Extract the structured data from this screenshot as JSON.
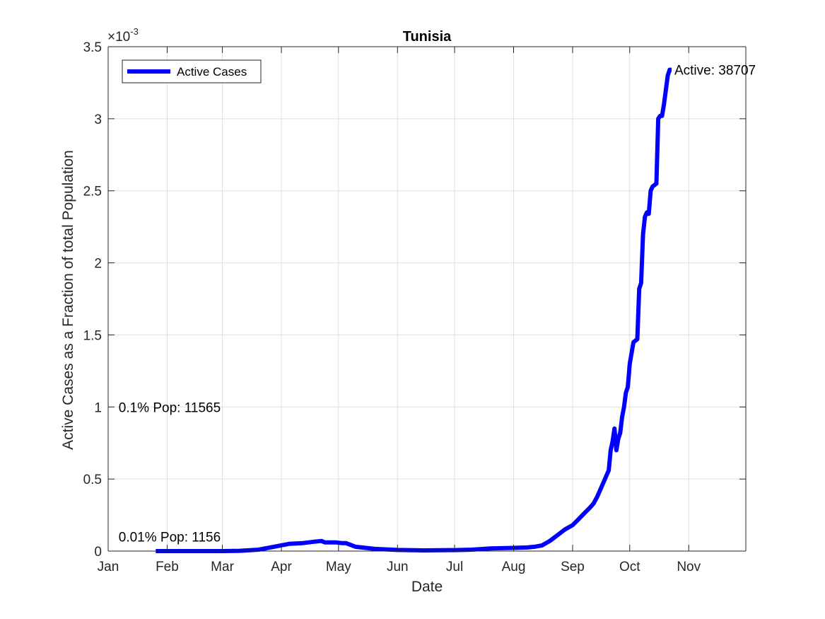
{
  "colors": {
    "series": "#0000ff",
    "axis": "#262626",
    "grid": "#dfdfdf",
    "background": "#ffffff"
  },
  "chart_data": {
    "type": "line",
    "title": "Tunisia",
    "xlabel": "Date",
    "ylabel": "Active Cases as a Fraction of total Population",
    "y_exponent_label": "×10",
    "y_exponent_power": "-3",
    "y_multiplier": 0.001,
    "ylim": [
      0,
      3.5
    ],
    "y_ticks": [
      0,
      0.5,
      1,
      1.5,
      2,
      2.5,
      3,
      3.5
    ],
    "y_tick_labels": [
      "0",
      "0.5",
      "1",
      "1.5",
      "2",
      "2.5",
      "3",
      "3.5"
    ],
    "xlim": [
      "2020-01-01",
      "2020-12-01"
    ],
    "x_ticks": [
      "2020-01-01",
      "2020-02-01",
      "2020-03-01",
      "2020-04-01",
      "2020-05-01",
      "2020-06-01",
      "2020-07-01",
      "2020-08-01",
      "2020-09-01",
      "2020-10-01",
      "2020-11-01"
    ],
    "x_tick_labels": [
      "Jan",
      "Feb",
      "Mar",
      "Apr",
      "May",
      "Jun",
      "Jul",
      "Aug",
      "Sep",
      "Oct",
      "Nov"
    ],
    "grid": true,
    "legend": {
      "placement": "top-left",
      "entries": [
        "Active Cases"
      ]
    },
    "annotations": [
      {
        "text": "Active: 38707",
        "x": "2020-10-23",
        "y": 3.34
      },
      {
        "text": "0.1% Pop: 11565",
        "x": "2020-01-05",
        "y": 1.0
      },
      {
        "text": "0.01% Pop: 1156",
        "x": "2020-01-05",
        "y": 0.1
      }
    ],
    "series": [
      {
        "name": "Active Cases",
        "x": [
          "2020-01-26",
          "2020-02-15",
          "2020-03-01",
          "2020-03-10",
          "2020-03-20",
          "2020-03-28",
          "2020-04-05",
          "2020-04-12",
          "2020-04-18",
          "2020-04-22",
          "2020-04-24",
          "2020-04-30",
          "2020-05-03",
          "2020-05-05",
          "2020-05-10",
          "2020-05-20",
          "2020-06-01",
          "2020-06-15",
          "2020-07-01",
          "2020-07-10",
          "2020-07-20",
          "2020-08-01",
          "2020-08-08",
          "2020-08-12",
          "2020-08-16",
          "2020-08-20",
          "2020-08-24",
          "2020-08-28",
          "2020-09-01",
          "2020-09-04",
          "2020-09-07",
          "2020-09-10",
          "2020-09-12",
          "2020-09-14",
          "2020-09-16",
          "2020-09-18",
          "2020-09-19",
          "2020-09-20",
          "2020-09-21",
          "2020-09-22",
          "2020-09-23",
          "2020-09-24",
          "2020-09-25",
          "2020-09-26",
          "2020-09-27",
          "2020-09-28",
          "2020-09-29",
          "2020-09-30",
          "2020-10-01",
          "2020-10-03",
          "2020-10-04",
          "2020-10-05",
          "2020-10-06",
          "2020-10-07",
          "2020-10-08",
          "2020-10-09",
          "2020-10-10",
          "2020-10-11",
          "2020-10-12",
          "2020-10-13",
          "2020-10-14",
          "2020-10-15",
          "2020-10-16",
          "2020-10-17",
          "2020-10-18",
          "2020-10-19",
          "2020-10-20",
          "2020-10-21",
          "2020-10-22",
          "2020-10-23"
        ],
        "values": [
          0.0,
          0.0,
          0.0,
          0.002,
          0.01,
          0.03,
          0.05,
          0.055,
          0.065,
          0.07,
          0.06,
          0.06,
          0.055,
          0.055,
          0.03,
          0.015,
          0.008,
          0.005,
          0.007,
          0.01,
          0.018,
          0.022,
          0.025,
          0.03,
          0.04,
          0.07,
          0.11,
          0.15,
          0.18,
          0.22,
          0.26,
          0.3,
          0.33,
          0.38,
          0.44,
          0.5,
          0.53,
          0.56,
          0.7,
          0.76,
          0.85,
          0.7,
          0.78,
          0.82,
          0.93,
          1.0,
          1.1,
          1.14,
          1.3,
          1.45,
          1.46,
          1.47,
          1.82,
          1.86,
          2.2,
          2.32,
          2.35,
          2.34,
          2.5,
          2.53,
          2.54,
          2.55,
          3.0,
          3.02,
          3.02,
          3.1,
          3.2,
          3.3,
          3.34,
          3.34
        ]
      }
    ]
  }
}
